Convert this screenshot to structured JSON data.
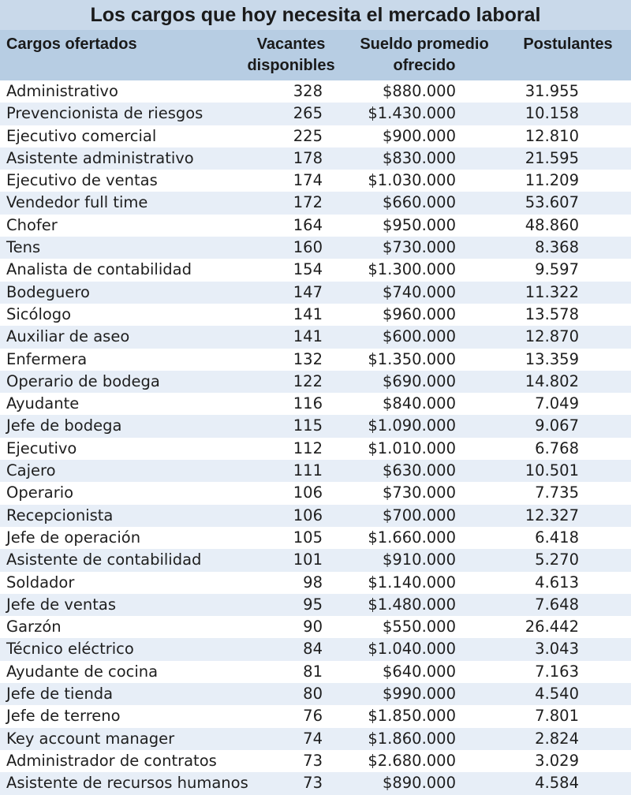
{
  "title": "Los cargos que hoy necesita el mercado laboral",
  "headers": {
    "cargo": "Cargos ofertados",
    "vacantes_1": "Vacantes",
    "vacantes_2": "disponibles",
    "sueldo_1": "Sueldo promedio",
    "sueldo_2": "ofrecido",
    "postulantes": "Postulantes"
  },
  "rows": [
    {
      "cargo": "Administrativo",
      "vacantes": "328",
      "sueldo": "$880.000",
      "postulantes": "31.955"
    },
    {
      "cargo": "Prevencionista de riesgos",
      "vacantes": "265",
      "sueldo": "$1.430.000",
      "postulantes": "10.158"
    },
    {
      "cargo": "Ejecutivo comercial",
      "vacantes": "225",
      "sueldo": "$900.000",
      "postulantes": "12.810"
    },
    {
      "cargo": "Asistente administrativo",
      "vacantes": "178",
      "sueldo": "$830.000",
      "postulantes": "21.595"
    },
    {
      "cargo": "Ejecutivo de ventas",
      "vacantes": "174",
      "sueldo": "$1.030.000",
      "postulantes": "11.209"
    },
    {
      "cargo": "Vendedor full time",
      "vacantes": "172",
      "sueldo": "$660.000",
      "postulantes": "53.607"
    },
    {
      "cargo": "Chofer",
      "vacantes": "164",
      "sueldo": "$950.000",
      "postulantes": "48.860"
    },
    {
      "cargo": "Tens",
      "vacantes": "160",
      "sueldo": "$730.000",
      "postulantes": "8.368"
    },
    {
      "cargo": "Analista de contabilidad",
      "vacantes": "154",
      "sueldo": "$1.300.000",
      "postulantes": "9.597"
    },
    {
      "cargo": "Bodeguero",
      "vacantes": "147",
      "sueldo": "$740.000",
      "postulantes": "11.322"
    },
    {
      "cargo": "Sicólogo",
      "vacantes": "141",
      "sueldo": "$960.000",
      "postulantes": "13.578"
    },
    {
      "cargo": "Auxiliar de aseo",
      "vacantes": "141",
      "sueldo": "$600.000",
      "postulantes": "12.870"
    },
    {
      "cargo": "Enfermera",
      "vacantes": "132",
      "sueldo": "$1.350.000",
      "postulantes": "13.359"
    },
    {
      "cargo": "Operario de bodega",
      "vacantes": "122",
      "sueldo": "$690.000",
      "postulantes": "14.802"
    },
    {
      "cargo": "Ayudante",
      "vacantes": "116",
      "sueldo": "$840.000",
      "postulantes": "7.049"
    },
    {
      "cargo": "Jefe de bodega",
      "vacantes": "115",
      "sueldo": "$1.090.000",
      "postulantes": "9.067"
    },
    {
      "cargo": "Ejecutivo",
      "vacantes": "112",
      "sueldo": "$1.010.000",
      "postulantes": "6.768"
    },
    {
      "cargo": "Cajero",
      "vacantes": "111",
      "sueldo": "$630.000",
      "postulantes": "10.501"
    },
    {
      "cargo": "Operario",
      "vacantes": "106",
      "sueldo": "$730.000",
      "postulantes": "7.735"
    },
    {
      "cargo": "Recepcionista",
      "vacantes": "106",
      "sueldo": "$700.000",
      "postulantes": "12.327"
    },
    {
      "cargo": "Jefe de operación",
      "vacantes": "105",
      "sueldo": "$1.660.000",
      "postulantes": "6.418"
    },
    {
      "cargo": "Asistente de contabilidad",
      "vacantes": "101",
      "sueldo": "$910.000",
      "postulantes": "5.270"
    },
    {
      "cargo": "Soldador",
      "vacantes": "98",
      "sueldo": "$1.140.000",
      "postulantes": "4.613"
    },
    {
      "cargo": "Jefe de ventas",
      "vacantes": "95",
      "sueldo": "$1.480.000",
      "postulantes": "7.648"
    },
    {
      "cargo": "Garzón",
      "vacantes": "90",
      "sueldo": "$550.000",
      "postulantes": "26.442"
    },
    {
      "cargo": "Técnico eléctrico",
      "vacantes": "84",
      "sueldo": "$1.040.000",
      "postulantes": "3.043"
    },
    {
      "cargo": "Ayudante de cocina",
      "vacantes": "81",
      "sueldo": "$640.000",
      "postulantes": "7.163"
    },
    {
      "cargo": "Jefe de tienda",
      "vacantes": "80",
      "sueldo": "$990.000",
      "postulantes": "4.540"
    },
    {
      "cargo": "Jefe de terreno",
      "vacantes": "76",
      "sueldo": "$1.850.000",
      "postulantes": "7.801"
    },
    {
      "cargo": "Key account manager",
      "vacantes": "74",
      "sueldo": "$1.860.000",
      "postulantes": "2.824"
    },
    {
      "cargo": "Administrador de contratos",
      "vacantes": "73",
      "sueldo": "$2.680.000",
      "postulantes": "3.029"
    },
    {
      "cargo": "Asistente de recursos humanos",
      "vacantes": "73",
      "sueldo": "$890.000",
      "postulantes": "4.584"
    }
  ],
  "colors": {
    "title_bg": "#c9d9ea",
    "header_bg": "#b7cde3",
    "alt_row_bg": "#e7eef7",
    "row_bg": "#ffffff"
  }
}
